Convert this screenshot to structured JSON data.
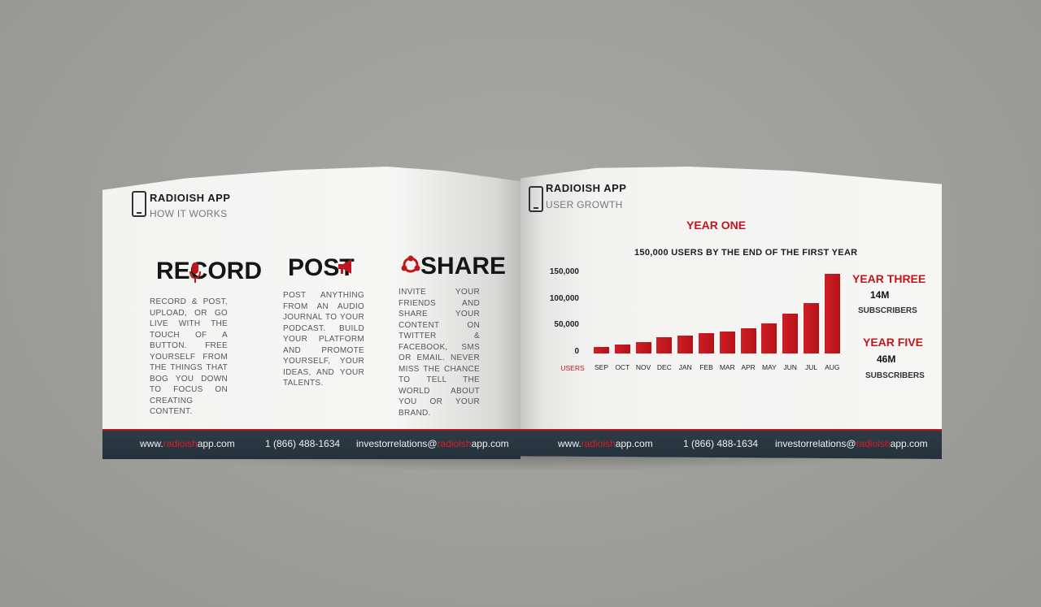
{
  "left_page": {
    "brand": "RADIOISH APP",
    "subtitle": "HOW IT WORKS",
    "features": [
      {
        "title": "RECORD",
        "text": "Record & post, upload, or go live with the touch of a button. Free yourself from the things that bog you down to focus on creating content.",
        "icon": "microphone-icon"
      },
      {
        "title": "POST",
        "text": "Post anything from an audio journal to your podcast. Build your platform and promote yourself, your ideas, and your talents.",
        "icon": "megaphone-icon"
      },
      {
        "title": "SHARE",
        "text": "Invite your friends and share your content on Twitter & Facebook, SMS or email. Never miss the chance to tell the world about you or your brand.",
        "icon": "share-icon"
      }
    ]
  },
  "right_page": {
    "brand": "RADIOISH APP",
    "subtitle": "USER GROWTH",
    "year_three": {
      "label": "YEAR THREE",
      "value": "14M",
      "unit": "SUBSCRIBERS"
    },
    "year_five": {
      "label": "YEAR FIVE",
      "value": "46M",
      "unit": "SUBSCRIBERS"
    }
  },
  "footer": {
    "web_prefix": "www.",
    "web_brand": "radioish",
    "web_suffix": "app.com",
    "phone": "1 (866) 488-1634",
    "email_prefix": "investorrelations@",
    "email_brand": "radioish",
    "email_suffix": "app.com"
  },
  "colors": {
    "accent": "#c0161d",
    "footer": "#2a3741"
  },
  "chart_data": {
    "type": "bar",
    "title": "YEAR ONE",
    "subtitle": "150,000 USERS BY THE END OF THE FIRST YEAR",
    "xlabel": "USERS",
    "ylabel": "",
    "categories": [
      "SEP",
      "OCT",
      "NOV",
      "DEC",
      "JAN",
      "FEB",
      "MAR",
      "APR",
      "MAY",
      "JUN",
      "JUL",
      "AUG"
    ],
    "values": [
      12000,
      17000,
      22000,
      30000,
      33000,
      38000,
      42000,
      47000,
      57000,
      75000,
      95000,
      150000
    ],
    "yticks": [
      "0",
      "50,000",
      "100,000",
      "150,000"
    ],
    "ylim": [
      0,
      150000
    ],
    "grid": false
  }
}
